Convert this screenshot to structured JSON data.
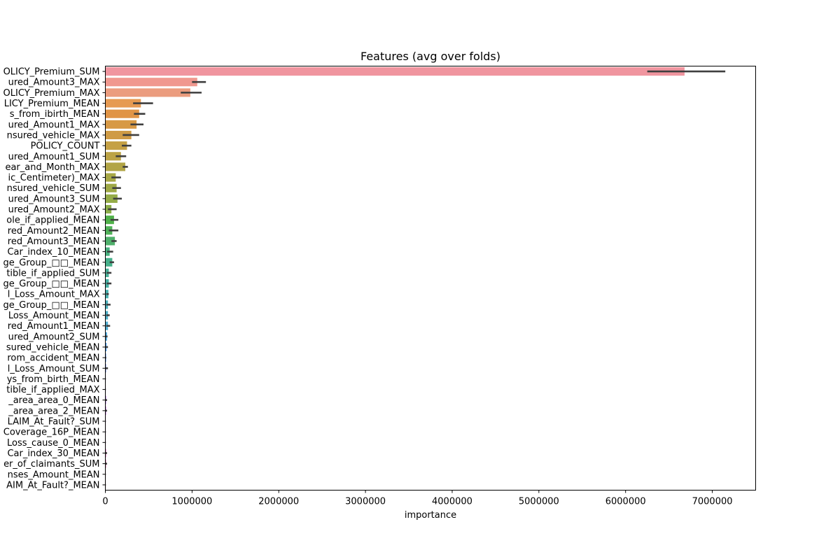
{
  "chart_data": {
    "type": "bar",
    "orientation": "horizontal",
    "title": "Features (avg over folds)",
    "xlabel": "importance",
    "ylabel": "",
    "xlim": [
      0,
      7500000
    ],
    "xticks": [
      0,
      1000000,
      2000000,
      3000000,
      4000000,
      5000000,
      6000000,
      7000000
    ],
    "xtick_labels": [
      "0",
      "1000000",
      "2000000",
      "3000000",
      "4000000",
      "5000000",
      "6000000",
      "7000000"
    ],
    "grid": false,
    "categories": [
      "OLICY_Premium_SUM",
      "ured_Amount3_MAX",
      "OLICY_Premium_MAX",
      "LICY_Premium_MEAN",
      "s_from_ibirth_MEAN",
      "ured_Amount1_MAX",
      "nsured_vehicle_MAX",
      "POLICY_COUNT",
      "ured_Amount1_SUM",
      "ear_and_Month_MAX",
      "ic_Centimeter)_MAX",
      "nsured_vehicle_SUM",
      "ured_Amount3_SUM",
      "ured_Amount2_MAX",
      "ole_if_applied_MEAN",
      "red_Amount2_MEAN",
      "red_Amount3_MEAN",
      "Car_index_10_MEAN",
      "ge_Group_□□_MEAN",
      "tible_if_applied_SUM",
      "ge_Group_□□_MEAN",
      "l_Loss_Amount_MAX",
      "ge_Group_□□_MEAN",
      "Loss_Amount_MEAN",
      "red_Amount1_MEAN",
      "ured_Amount2_SUM",
      "sured_vehicle_MEAN",
      "rom_accident_MEAN",
      "l_Loss_Amount_SUM",
      "ys_from_birth_MEAN",
      "tible_if_applied_MAX",
      "_area_area_0_MEAN",
      "_area_area_2_MEAN",
      "LAIM_At_Fault?_SUM",
      "Coverage_16P_MEAN",
      "Loss_cause_0_MEAN",
      "Car_index_30_MEAN",
      "er_of_claimants_SUM",
      "nses_Amount_MEAN",
      "AIM_At_Fault?_MEAN"
    ],
    "values": [
      6680000,
      1060000,
      980000,
      410000,
      390000,
      360000,
      300000,
      250000,
      180000,
      230000,
      120000,
      130000,
      140000,
      70000,
      100000,
      80000,
      110000,
      50000,
      80000,
      40000,
      40000,
      35000,
      30000,
      30000,
      30000,
      20000,
      15000,
      10000,
      10000,
      5000,
      5000,
      10000,
      10000,
      5000,
      5000,
      5000,
      10000,
      10000,
      5000,
      5000
    ],
    "error_low": [
      6250000,
      1000000,
      870000,
      320000,
      330000,
      290000,
      200000,
      190000,
      120000,
      200000,
      70000,
      80000,
      90000,
      30000,
      60000,
      40000,
      70000,
      20000,
      50000,
      15000,
      15000,
      10000,
      10000,
      10000,
      10000,
      5000,
      5000,
      3000,
      3000,
      2000,
      2000,
      3000,
      3000,
      2000,
      2000,
      2000,
      3000,
      3000,
      2000,
      2000
    ],
    "error_high": [
      7150000,
      1160000,
      1110000,
      550000,
      460000,
      440000,
      390000,
      300000,
      240000,
      260000,
      180000,
      180000,
      190000,
      130000,
      150000,
      150000,
      130000,
      90000,
      100000,
      70000,
      70000,
      40000,
      60000,
      50000,
      55000,
      25000,
      30000,
      10000,
      30000,
      5000,
      5000,
      20000,
      20000,
      5000,
      5000,
      5000,
      20000,
      20000,
      5000,
      5000
    ],
    "colors": [
      "#f0959f",
      "#f0988f",
      "#eb9c7e",
      "#e69a52",
      "#e09446",
      "#d79945",
      "#cf9b45",
      "#c5a145",
      "#bca346",
      "#b2a546",
      "#a8a847",
      "#9fa947",
      "#95ac48",
      "#8cae49",
      "#50b14a",
      "#4fb158",
      "#4fb06b",
      "#47b07e",
      "#46b08a",
      "#47b097",
      "#45afa2",
      "#46afad",
      "#48adb8",
      "#4aabc3",
      "#4ca9ce",
      "#4ea6d8",
      "#519ee6",
      "#6a9ef0",
      "#889ef0",
      "#a09df0",
      "#b092ef",
      "#bf8cef",
      "#cc87ee",
      "#db86e9",
      "#e285dc",
      "#e685d2",
      "#e888c8",
      "#ea8ebd",
      "#ed91b2",
      "#ee94a8"
    ]
  }
}
